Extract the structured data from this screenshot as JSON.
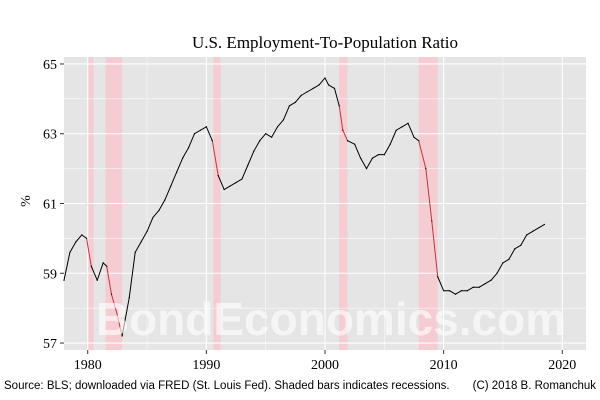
{
  "chart_data": {
    "type": "line",
    "title": "U.S. Employment-To-Population Ratio",
    "ylabel": "%",
    "xlabel": "",
    "xlim": [
      1978,
      2022
    ],
    "ylim": [
      56.8,
      65.2
    ],
    "x_ticks": [
      1980,
      1990,
      2000,
      2010,
      2020
    ],
    "y_ticks": [
      57,
      59,
      61,
      63,
      65
    ],
    "grid": true,
    "recessions": [
      [
        1980.0,
        1980.5
      ],
      [
        1981.5,
        1982.9
      ],
      [
        1990.6,
        1991.2
      ],
      [
        2001.2,
        2001.9
      ],
      [
        2007.9,
        2009.5
      ]
    ],
    "series": [
      {
        "x": [
          1978.0,
          1978.5,
          1979.0,
          1979.5,
          1979.9,
          1980.3,
          1980.8,
          1981.3,
          1981.6,
          1982.0,
          1982.5,
          1982.9,
          1983.5,
          1984.0,
          1984.5,
          1985.0,
          1985.5,
          1986.0,
          1986.5,
          1987.0,
          1987.5,
          1988.0,
          1988.5,
          1989.0,
          1989.5,
          1990.0,
          1990.5,
          1991.0,
          1991.5,
          1992.0,
          1992.5,
          1993.0,
          1993.5,
          1994.0,
          1994.5,
          1995.0,
          1995.5,
          1996.0,
          1996.5,
          1997.0,
          1997.5,
          1998.0,
          1998.5,
          1999.0,
          1999.5,
          2000.0,
          2000.3,
          2000.8,
          2001.2,
          2001.5,
          2001.9,
          2002.5,
          2003.0,
          2003.5,
          2004.0,
          2004.5,
          2005.0,
          2005.5,
          2006.0,
          2006.5,
          2007.0,
          2007.5,
          2007.9,
          2008.5,
          2009.0,
          2009.5,
          2010.0,
          2010.5,
          2011.0,
          2011.5,
          2012.0,
          2012.5,
          2013.0,
          2013.5,
          2014.0,
          2014.5,
          2015.0,
          2015.5,
          2016.0,
          2016.5,
          2017.0,
          2017.5,
          2018.0,
          2018.5
        ],
        "values": [
          58.8,
          59.6,
          59.9,
          60.1,
          60.0,
          59.2,
          58.8,
          59.3,
          59.2,
          58.4,
          57.8,
          57.2,
          58.3,
          59.6,
          59.9,
          60.2,
          60.6,
          60.8,
          61.1,
          61.5,
          61.9,
          62.3,
          62.6,
          63.0,
          63.1,
          63.2,
          62.8,
          61.8,
          61.4,
          61.5,
          61.6,
          61.7,
          62.1,
          62.5,
          62.8,
          63.0,
          62.9,
          63.2,
          63.4,
          63.8,
          63.9,
          64.1,
          64.2,
          64.3,
          64.4,
          64.6,
          64.4,
          64.3,
          63.8,
          63.1,
          62.8,
          62.7,
          62.3,
          62.0,
          62.3,
          62.4,
          62.4,
          62.7,
          63.1,
          63.2,
          63.3,
          62.9,
          62.8,
          62.0,
          60.5,
          58.9,
          58.5,
          58.5,
          58.4,
          58.5,
          58.5,
          58.6,
          58.6,
          58.7,
          58.8,
          59.0,
          59.3,
          59.4,
          59.7,
          59.8,
          60.1,
          60.2,
          60.3,
          60.4
        ]
      }
    ],
    "source_note": "Source: BLS; downloaded via FRED (St. Louis Fed). Shaded bars indicates recessions.",
    "copyright": "(C) 2018 B. Romanchuk",
    "watermark": "BondEconomics.com",
    "colors": {
      "panel": "#e5e5e5",
      "grid": "#ffffff",
      "recession": "#f4ccd2",
      "line": "#000000",
      "line_recession": "#b5393f"
    }
  }
}
